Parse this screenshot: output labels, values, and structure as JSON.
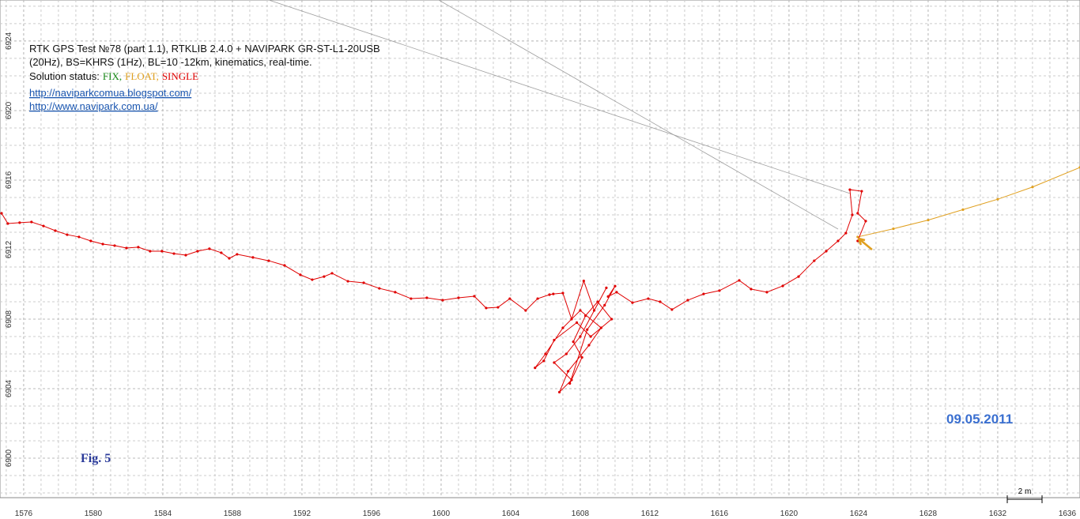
{
  "chart_data": {
    "type": "line",
    "title_lines": [
      "RTK GPS Test №78 (part 1.1), RTKLIB 2.4.0 + NAVIPARK GR-ST-L1-20USB",
      "(20Hz), BS=KHRS (1Hz), BL=10 -12km, kinematics, real-time."
    ],
    "legend_title": "Solution status:",
    "legend_separator": ",",
    "links": [
      "http://naviparkcomua.blogspot.com/",
      "http://www.navipark.com.ua/"
    ],
    "figure_label": "Fig. 5",
    "date_label": "09.05.2011",
    "scale_label": "2 m",
    "xlim": [
      1574.64,
      1636.73
    ],
    "ylim": [
      6897.73,
      6926.36
    ],
    "xticks": [
      1576,
      1580,
      1584,
      1588,
      1592,
      1596,
      1600,
      1604,
      1608,
      1612,
      1616,
      1620,
      1624,
      1628,
      1632,
      1636
    ],
    "yticks": [
      6900,
      6904,
      6908,
      6912,
      6916,
      6920,
      6924
    ],
    "grid": true,
    "series": [
      {
        "name": "FIX",
        "color": "#1a8a1a",
        "x": [],
        "values": []
      },
      {
        "name": "FLOAT",
        "color": "#e0a020",
        "x": [
          1623.95,
          1626,
          1628,
          1630,
          1632,
          1634,
          1636.73
        ],
        "values": [
          6912.73,
          6913.2,
          6913.7,
          6914.3,
          6914.9,
          6915.6,
          6916.73
        ]
      },
      {
        "name": "SINGLE",
        "color": "#e00000",
        "x": [
          1574.73,
          1575.09,
          1575.77,
          1576.45,
          1577.14,
          1577.82,
          1578.5,
          1579.18,
          1579.86,
          1580.55,
          1581.23,
          1581.91,
          1582.59,
          1583.27,
          1583.95,
          1584.64,
          1585.32,
          1586,
          1586.68,
          1587.36,
          1587.82,
          1588.27,
          1589.18,
          1590.09,
          1591,
          1591.91,
          1592.59,
          1593.27,
          1593.73,
          1594.64,
          1595.55,
          1596.45,
          1597.36,
          1598.27,
          1599.18,
          1600.09,
          1601,
          1601.91,
          1602.59,
          1603.27,
          1603.95,
          1604.86,
          1605.55,
          1606.23,
          1606.45,
          1607,
          1607.5,
          1608.2,
          1608.8,
          1609.5,
          1608,
          1607.2,
          1606.5,
          1607.5,
          1606.8,
          1607.3,
          1608.5,
          1609.2,
          1608,
          1607,
          1606,
          1605.4,
          1605.9,
          1606.5,
          1607.8,
          1608.6,
          1609.8,
          1609,
          1608.3,
          1607.6,
          1608.1,
          1607.4,
          1608.4,
          1609.4,
          1610,
          1609.6,
          1610.09,
          1611,
          1611.91,
          1612.59,
          1613.27,
          1614.18,
          1615.09,
          1616,
          1617.14,
          1617.82,
          1618.73,
          1619.64,
          1620.55,
          1621.45,
          1622.14,
          1622.82,
          1623.27,
          1623.64,
          1623.5,
          1624.18,
          1623.95,
          1624.41,
          1623.95
        ],
        "values": [
          6914.09,
          6913.5,
          6913.55,
          6913.59,
          6913.36,
          6913.09,
          6912.86,
          6912.73,
          6912.5,
          6912.32,
          6912.23,
          6912.09,
          6912.14,
          6911.91,
          6911.91,
          6911.77,
          6911.68,
          6911.91,
          6912.05,
          6911.82,
          6911.5,
          6911.73,
          6911.55,
          6911.36,
          6911.09,
          6910.55,
          6910.27,
          6910.45,
          6910.64,
          6910.18,
          6910.09,
          6909.77,
          6909.55,
          6909.18,
          6909.23,
          6909.09,
          6909.23,
          6909.32,
          6908.64,
          6908.68,
          6909.18,
          6908.5,
          6909.18,
          6909.41,
          6909.45,
          6909.5,
          6908,
          6910.2,
          6908.5,
          6909.8,
          6907,
          6906,
          6905.5,
          6904.5,
          6903.8,
          6905,
          6906.5,
          6907.5,
          6908.5,
          6907.5,
          6906,
          6905.2,
          6905.6,
          6906.8,
          6907.8,
          6907,
          6908,
          6909,
          6908.2,
          6906.7,
          6905.8,
          6904.3,
          6907.4,
          6908.8,
          6909.9,
          6909.3,
          6909.55,
          6908.95,
          6909.18,
          6909,
          6908.55,
          6909.09,
          6909.45,
          6909.64,
          6910.23,
          6909.73,
          6909.55,
          6909.91,
          6910.45,
          6911.36,
          6911.91,
          6912.5,
          6912.95,
          6914,
          6915.45,
          6915.36,
          6914.09,
          6913.64,
          6912.5
        ]
      },
      {
        "color": "#a0a0a0",
        "x": [
          1590.09,
          1623.5
        ],
        "values": [
          6926.36,
          6915.23
        ]
      },
      {
        "color": "#a0a0a0",
        "x": [
          1599.86,
          1622.82
        ],
        "values": [
          6926.36,
          6913.18
        ]
      }
    ]
  }
}
